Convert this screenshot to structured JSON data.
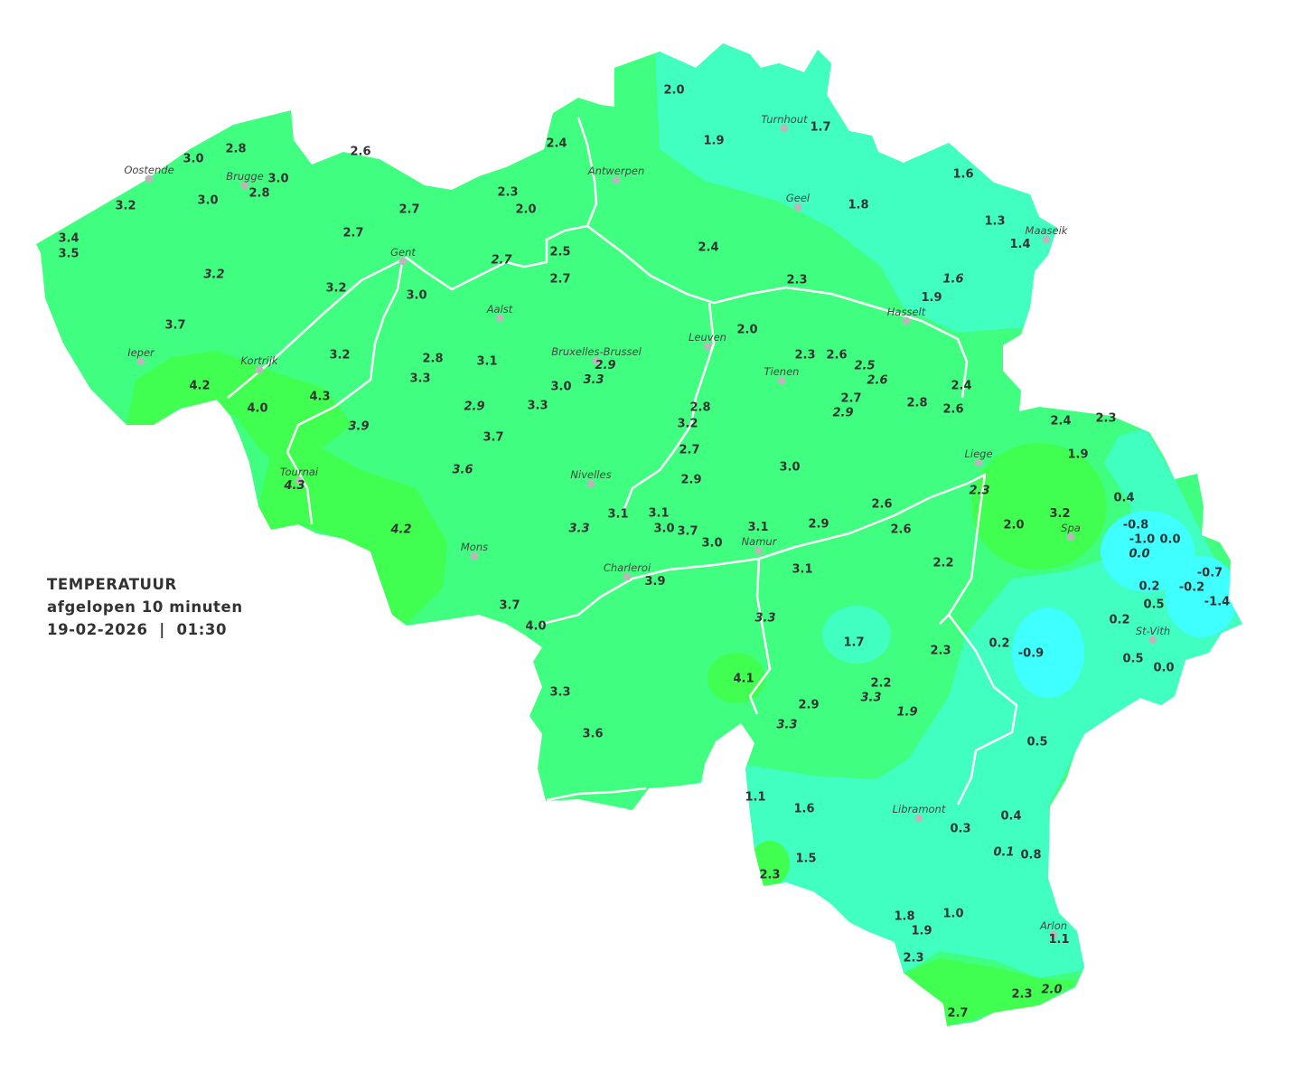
{
  "legend": {
    "title": "TEMPERATUUR",
    "subtitle": "afgelopen 10 minuten",
    "datetime": "19-02-2026  |  01:30"
  },
  "colors": {
    "main_green": "#40FF80",
    "warm_green": "#40FF50",
    "teal": "#40FFC0",
    "cyan": "#40FFFF",
    "rivers": "#FFFFFF",
    "city_dot": "#B8B8B8"
  },
  "cities": [
    "Oostende",
    "Brugge",
    "Antwerpen",
    "Turnhout",
    "Geel",
    "Maaseik",
    "Gent",
    "Aalst",
    "Hasselt",
    "Leuven",
    "Bruxelles-Brussel",
    "Ieper",
    "Kortrijk",
    "Tienen",
    "Liege",
    "Tournai",
    "Nivelles",
    "Spa",
    "Mons",
    "Namur",
    "Charleroi",
    "St-Vith",
    "Libramont",
    "Arlon"
  ],
  "stations": [
    {
      "value": "2.0"
    },
    {
      "value": "1.9"
    },
    {
      "value": "1.7"
    },
    {
      "value": "2.4"
    },
    {
      "value": "2.6"
    },
    {
      "value": "2.8"
    },
    {
      "value": "3.0"
    },
    {
      "value": "3.0"
    },
    {
      "value": "2.8"
    },
    {
      "value": "3.0"
    },
    {
      "value": "3.2"
    },
    {
      "value": "2.3"
    },
    {
      "value": "2.0"
    },
    {
      "value": "2.7"
    },
    {
      "value": "1.6"
    },
    {
      "value": "1.8"
    },
    {
      "value": "1.3"
    },
    {
      "value": "1.4"
    },
    {
      "value": "3.4"
    },
    {
      "value": "3.5"
    },
    {
      "value": "2.7"
    },
    {
      "value": "2.4"
    },
    {
      "value": "2.5"
    },
    {
      "value": "2.7",
      "italic": true
    },
    {
      "value": "3.2",
      "italic": true
    },
    {
      "value": "2.7"
    },
    {
      "value": "2.3"
    },
    {
      "value": "1.6",
      "italic": true
    },
    {
      "value": "3.2"
    },
    {
      "value": "3.0"
    },
    {
      "value": "1.9"
    },
    {
      "value": "3.7"
    },
    {
      "value": "2.0"
    },
    {
      "value": "2.3"
    },
    {
      "value": "2.6"
    },
    {
      "value": "2.5",
      "italic": true
    },
    {
      "value": "2.6",
      "italic": true
    },
    {
      "value": "3.2"
    },
    {
      "value": "2.8"
    },
    {
      "value": "3.1"
    },
    {
      "value": "2.9",
      "italic": true
    },
    {
      "value": "3.3",
      "italic": true
    },
    {
      "value": "3.3"
    },
    {
      "value": "3.0"
    },
    {
      "value": "4.2"
    },
    {
      "value": "4.3"
    },
    {
      "value": "4.0"
    },
    {
      "value": "2.9",
      "italic": true
    },
    {
      "value": "3.3"
    },
    {
      "value": "2.8"
    },
    {
      "value": "2.7"
    },
    {
      "value": "2.9",
      "italic": true
    },
    {
      "value": "2.8"
    },
    {
      "value": "2.4"
    },
    {
      "value": "2.6"
    },
    {
      "value": "3.2"
    },
    {
      "value": "3.9",
      "italic": true
    },
    {
      "value": "3.7"
    },
    {
      "value": "2.7"
    },
    {
      "value": "3.6",
      "italic": true
    },
    {
      "value": "3.0"
    },
    {
      "value": "4.3",
      "italic": true
    },
    {
      "value": "2.9"
    },
    {
      "value": "2.3",
      "italic": true
    },
    {
      "value": "2.6"
    },
    {
      "value": "3.1"
    },
    {
      "value": "3.1"
    },
    {
      "value": "3.3",
      "italic": true
    },
    {
      "value": "3.0"
    },
    {
      "value": "3.7"
    },
    {
      "value": "3.1"
    },
    {
      "value": "2.9"
    },
    {
      "value": "2.6"
    },
    {
      "value": "4.2",
      "italic": true
    },
    {
      "value": "3.0"
    },
    {
      "value": "2.4"
    },
    {
      "value": "2.3"
    },
    {
      "value": "1.9"
    },
    {
      "value": "0.4"
    },
    {
      "value": "2.0"
    },
    {
      "value": "3.2"
    },
    {
      "value": "-0.8"
    },
    {
      "value": "-1.0"
    },
    {
      "value": "0.0"
    },
    {
      "value": "0.0",
      "italic": true
    },
    {
      "value": "2.2"
    },
    {
      "value": "3.1"
    },
    {
      "value": "3.9"
    },
    {
      "value": "0.2"
    },
    {
      "value": "-0.2"
    },
    {
      "value": "-0.7"
    },
    {
      "value": "-1.4"
    },
    {
      "value": "0.5"
    },
    {
      "value": "0.2"
    },
    {
      "value": "3.7"
    },
    {
      "value": "4.0"
    },
    {
      "value": "3.3",
      "italic": true
    },
    {
      "value": "1.7"
    },
    {
      "value": "2.3"
    },
    {
      "value": "0.2"
    },
    {
      "value": "-0.9"
    },
    {
      "value": "0.5"
    },
    {
      "value": "0.0"
    },
    {
      "value": "4.1"
    },
    {
      "value": "2.2"
    },
    {
      "value": "3.3",
      "italic": true
    },
    {
      "value": "3.3"
    },
    {
      "value": "2.9"
    },
    {
      "value": "1.9",
      "italic": true
    },
    {
      "value": "3.3",
      "italic": true
    },
    {
      "value": "3.6"
    },
    {
      "value": "0.5"
    },
    {
      "value": "1.1"
    },
    {
      "value": "1.6"
    },
    {
      "value": "0.3"
    },
    {
      "value": "0.4"
    },
    {
      "value": "0.1",
      "italic": true
    },
    {
      "value": "0.8"
    },
    {
      "value": "1.5"
    },
    {
      "value": "2.3"
    },
    {
      "value": "1.8"
    },
    {
      "value": "1.9"
    },
    {
      "value": "1.0"
    },
    {
      "value": "1.1"
    },
    {
      "value": "2.3"
    },
    {
      "value": "2.3"
    },
    {
      "value": "2.0",
      "italic": true
    },
    {
      "value": "2.7"
    }
  ]
}
